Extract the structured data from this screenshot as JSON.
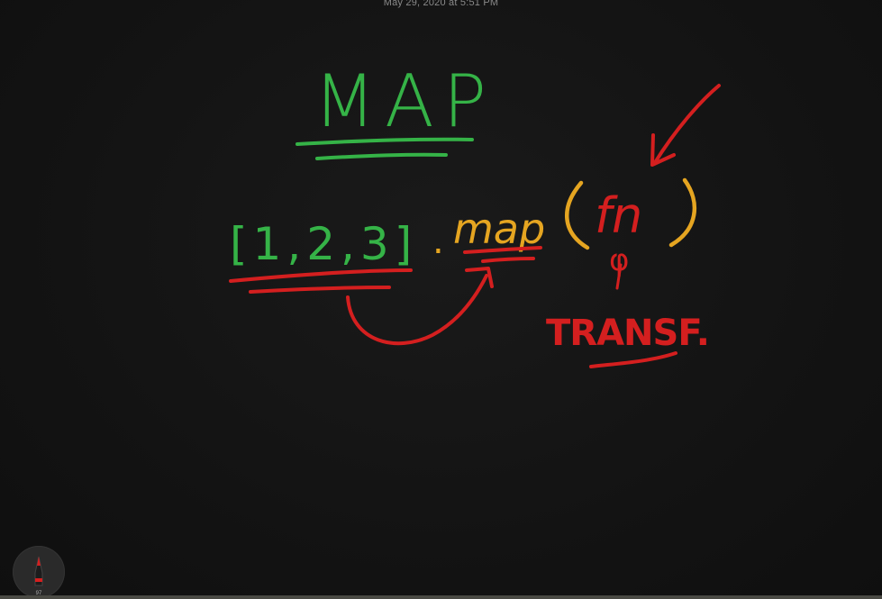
{
  "note": {
    "date": "May 29, 2020 at 5:51 PM"
  },
  "drawing": {
    "title": "MAP",
    "expression_array": "[1,2,3]",
    "expression_dot": ".",
    "expression_method": "map",
    "fn_label": "fn",
    "fn_symbol": "φ",
    "annotation": "TRANSF."
  },
  "colors": {
    "green_ink": "#35b347",
    "yellow_ink": "#e5a521",
    "red_ink": "#d41f1f",
    "background": "#141414"
  },
  "tools": {
    "pen_icon": "pen-tool-icon",
    "pen_size": "97"
  }
}
